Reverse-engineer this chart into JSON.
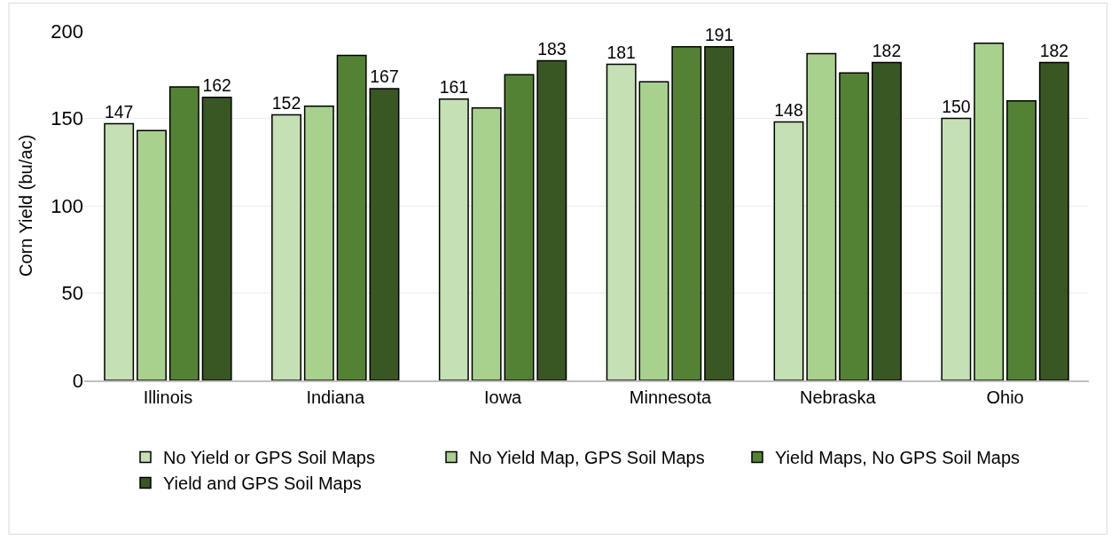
{
  "chart_data": {
    "type": "bar",
    "ylabel": "Corn Yield (bu/ac)",
    "categories": [
      "Illinois",
      "Indiana",
      "Iowa",
      "Minnesota",
      "Nebraska",
      "Ohio"
    ],
    "series": [
      {
        "name": "No Yield or GPS Soil Maps",
        "color": "#c5e0b4",
        "values": [
          147,
          152,
          161,
          181,
          148,
          150
        ],
        "value_labels": [
          "147",
          "152",
          "161",
          "181",
          "148",
          "150"
        ]
      },
      {
        "name": "No Yield Map, GPS Soil Maps",
        "color": "#a9d18e",
        "values": [
          143,
          157,
          156,
          171,
          187,
          193
        ]
      },
      {
        "name": "Yield Maps, No GPS Soil Maps",
        "color": "#548235",
        "values": [
          168,
          186,
          175,
          191,
          176,
          160
        ]
      },
      {
        "name": "Yield and GPS Soil Maps",
        "color": "#385723",
        "values": [
          162,
          167,
          183,
          191,
          182,
          182
        ],
        "value_labels": [
          "162",
          "167",
          "183",
          "191",
          "182",
          "182"
        ]
      }
    ],
    "ylim": [
      0,
      200
    ],
    "yticks": [
      0,
      50,
      100,
      150,
      200
    ],
    "grid": "y",
    "legend": "bottom"
  }
}
